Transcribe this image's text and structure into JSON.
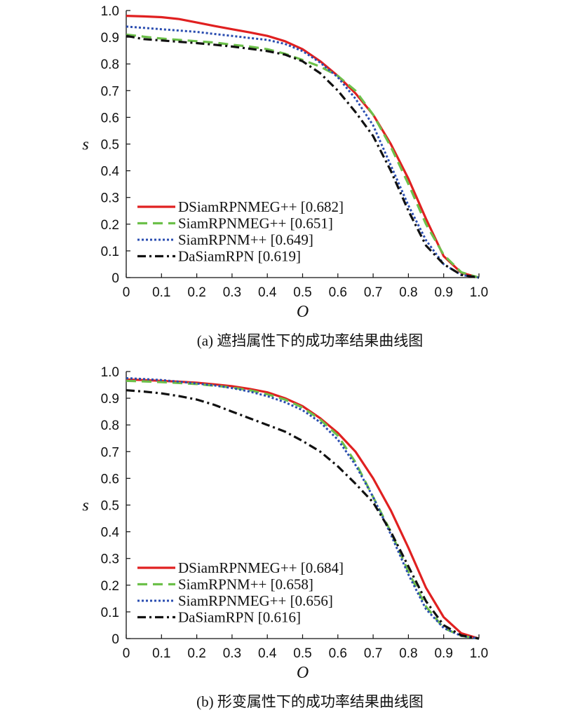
{
  "chart_data": [
    {
      "type": "line",
      "caption": "(a) 遮挡属性下的成功率结果曲线图",
      "xlabel": "O",
      "ylabel": "s",
      "xlim": [
        0,
        1.0
      ],
      "ylim": [
        0,
        1.0
      ],
      "xticks": [
        "0",
        "0.1",
        "0.2",
        "0.3",
        "0.4",
        "0.5",
        "0.6",
        "0.7",
        "0.8",
        "0.9",
        "1.0"
      ],
      "yticks": [
        "0",
        "0.1",
        "0.2",
        "0.3",
        "0.4",
        "0.5",
        "0.6",
        "0.7",
        "0.8",
        "0.9",
        "1.0"
      ],
      "grid": false,
      "legend_position": "bottom-left",
      "series": [
        {
          "name": "DSiamRPNMEG++ [0.682]",
          "color": "#e02020",
          "dash": "solid",
          "points": [
            [
              0,
              0.98
            ],
            [
              0.05,
              0.978
            ],
            [
              0.1,
              0.975
            ],
            [
              0.15,
              0.968
            ],
            [
              0.2,
              0.955
            ],
            [
              0.25,
              0.942
            ],
            [
              0.3,
              0.93
            ],
            [
              0.35,
              0.918
            ],
            [
              0.4,
              0.905
            ],
            [
              0.45,
              0.885
            ],
            [
              0.5,
              0.855
            ],
            [
              0.55,
              0.81
            ],
            [
              0.6,
              0.755
            ],
            [
              0.65,
              0.69
            ],
            [
              0.7,
              0.61
            ],
            [
              0.75,
              0.5
            ],
            [
              0.8,
              0.37
            ],
            [
              0.85,
              0.22
            ],
            [
              0.9,
              0.08
            ],
            [
              0.95,
              0.018
            ],
            [
              1.0,
              0
            ]
          ]
        },
        {
          "name": "SiamRPNMEG++ [0.651]",
          "color": "#6cc04a",
          "dash": "long-dash",
          "points": [
            [
              0,
              0.91
            ],
            [
              0.05,
              0.902
            ],
            [
              0.1,
              0.895
            ],
            [
              0.15,
              0.89
            ],
            [
              0.2,
              0.885
            ],
            [
              0.25,
              0.88
            ],
            [
              0.3,
              0.872
            ],
            [
              0.35,
              0.865
            ],
            [
              0.4,
              0.855
            ],
            [
              0.45,
              0.838
            ],
            [
              0.5,
              0.815
            ],
            [
              0.55,
              0.79
            ],
            [
              0.6,
              0.755
            ],
            [
              0.65,
              0.7
            ],
            [
              0.7,
              0.61
            ],
            [
              0.75,
              0.49
            ],
            [
              0.8,
              0.35
            ],
            [
              0.85,
              0.2
            ],
            [
              0.9,
              0.085
            ],
            [
              0.95,
              0.02
            ],
            [
              1.0,
              0
            ]
          ]
        },
        {
          "name": "SiamRPNM++ [0.649]",
          "color": "#2a4db0",
          "dash": "dot",
          "points": [
            [
              0,
              0.94
            ],
            [
              0.05,
              0.935
            ],
            [
              0.1,
              0.93
            ],
            [
              0.15,
              0.925
            ],
            [
              0.2,
              0.92
            ],
            [
              0.25,
              0.912
            ],
            [
              0.3,
              0.905
            ],
            [
              0.35,
              0.897
            ],
            [
              0.4,
              0.89
            ],
            [
              0.45,
              0.875
            ],
            [
              0.5,
              0.848
            ],
            [
              0.55,
              0.805
            ],
            [
              0.6,
              0.75
            ],
            [
              0.65,
              0.67
            ],
            [
              0.7,
              0.57
            ],
            [
              0.75,
              0.42
            ],
            [
              0.8,
              0.27
            ],
            [
              0.85,
              0.14
            ],
            [
              0.9,
              0.05
            ],
            [
              0.95,
              0.01
            ],
            [
              1.0,
              0
            ]
          ]
        },
        {
          "name": "DaSiamRPN [0.619]",
          "color": "#111111",
          "dash": "dash-dot",
          "points": [
            [
              0,
              0.905
            ],
            [
              0.05,
              0.893
            ],
            [
              0.1,
              0.888
            ],
            [
              0.15,
              0.883
            ],
            [
              0.2,
              0.878
            ],
            [
              0.25,
              0.872
            ],
            [
              0.3,
              0.865
            ],
            [
              0.35,
              0.857
            ],
            [
              0.4,
              0.848
            ],
            [
              0.45,
              0.835
            ],
            [
              0.5,
              0.81
            ],
            [
              0.55,
              0.765
            ],
            [
              0.6,
              0.7
            ],
            [
              0.65,
              0.62
            ],
            [
              0.7,
              0.53
            ],
            [
              0.75,
              0.4
            ],
            [
              0.8,
              0.25
            ],
            [
              0.85,
              0.12
            ],
            [
              0.9,
              0.05
            ],
            [
              0.95,
              0.01
            ],
            [
              1.0,
              0
            ]
          ]
        }
      ]
    },
    {
      "type": "line",
      "caption": "(b) 形变属性下的成功率结果曲线图",
      "xlabel": "O",
      "ylabel": "s",
      "xlim": [
        0,
        1.0
      ],
      "ylim": [
        0,
        1.0
      ],
      "xticks": [
        "0",
        "0.1",
        "0.2",
        "0.3",
        "0.4",
        "0.5",
        "0.6",
        "0.7",
        "0.8",
        "0.9",
        "1.0"
      ],
      "yticks": [
        "0",
        "0.1",
        "0.2",
        "0.3",
        "0.4",
        "0.5",
        "0.6",
        "0.7",
        "0.8",
        "0.9",
        "1.0"
      ],
      "grid": false,
      "legend_position": "bottom-left",
      "series": [
        {
          "name": "DSiamRPNMEG++ [0.684]",
          "color": "#e02020",
          "dash": "solid",
          "points": [
            [
              0,
              0.97
            ],
            [
              0.05,
              0.968
            ],
            [
              0.1,
              0.965
            ],
            [
              0.15,
              0.962
            ],
            [
              0.2,
              0.958
            ],
            [
              0.25,
              0.952
            ],
            [
              0.3,
              0.945
            ],
            [
              0.35,
              0.935
            ],
            [
              0.4,
              0.922
            ],
            [
              0.45,
              0.9
            ],
            [
              0.5,
              0.87
            ],
            [
              0.55,
              0.825
            ],
            [
              0.6,
              0.77
            ],
            [
              0.65,
              0.7
            ],
            [
              0.7,
              0.6
            ],
            [
              0.75,
              0.48
            ],
            [
              0.8,
              0.34
            ],
            [
              0.85,
              0.19
            ],
            [
              0.9,
              0.08
            ],
            [
              0.95,
              0.02
            ],
            [
              1.0,
              0
            ]
          ]
        },
        {
          "name": "SiamRPNM++ [0.658]",
          "color": "#6cc04a",
          "dash": "long-dash",
          "points": [
            [
              0,
              0.965
            ],
            [
              0.05,
              0.963
            ],
            [
              0.1,
              0.96
            ],
            [
              0.15,
              0.957
            ],
            [
              0.2,
              0.953
            ],
            [
              0.25,
              0.947
            ],
            [
              0.3,
              0.94
            ],
            [
              0.35,
              0.93
            ],
            [
              0.4,
              0.915
            ],
            [
              0.45,
              0.895
            ],
            [
              0.5,
              0.865
            ],
            [
              0.55,
              0.82
            ],
            [
              0.6,
              0.76
            ],
            [
              0.65,
              0.66
            ],
            [
              0.7,
              0.53
            ],
            [
              0.75,
              0.4
            ],
            [
              0.8,
              0.25
            ],
            [
              0.85,
              0.12
            ],
            [
              0.9,
              0.04
            ],
            [
              0.95,
              0.01
            ],
            [
              1.0,
              0
            ]
          ]
        },
        {
          "name": "SiamRPNMEG++ [0.656]",
          "color": "#2a4db0",
          "dash": "dot",
          "points": [
            [
              0,
              0.975
            ],
            [
              0.05,
              0.972
            ],
            [
              0.1,
              0.968
            ],
            [
              0.15,
              0.962
            ],
            [
              0.2,
              0.955
            ],
            [
              0.25,
              0.948
            ],
            [
              0.3,
              0.938
            ],
            [
              0.35,
              0.925
            ],
            [
              0.4,
              0.908
            ],
            [
              0.45,
              0.885
            ],
            [
              0.5,
              0.855
            ],
            [
              0.55,
              0.81
            ],
            [
              0.6,
              0.745
            ],
            [
              0.65,
              0.65
            ],
            [
              0.7,
              0.53
            ],
            [
              0.75,
              0.39
            ],
            [
              0.8,
              0.24
            ],
            [
              0.85,
              0.11
            ],
            [
              0.9,
              0.04
            ],
            [
              0.95,
              0.01
            ],
            [
              1.0,
              0
            ]
          ]
        },
        {
          "name": "DaSiamRPN [0.616]",
          "color": "#111111",
          "dash": "dash-dot",
          "points": [
            [
              0,
              0.93
            ],
            [
              0.05,
              0.925
            ],
            [
              0.1,
              0.918
            ],
            [
              0.15,
              0.908
            ],
            [
              0.2,
              0.895
            ],
            [
              0.25,
              0.875
            ],
            [
              0.3,
              0.85
            ],
            [
              0.35,
              0.825
            ],
            [
              0.4,
              0.8
            ],
            [
              0.45,
              0.775
            ],
            [
              0.5,
              0.74
            ],
            [
              0.55,
              0.7
            ],
            [
              0.6,
              0.645
            ],
            [
              0.65,
              0.58
            ],
            [
              0.7,
              0.51
            ],
            [
              0.75,
              0.4
            ],
            [
              0.8,
              0.27
            ],
            [
              0.85,
              0.14
            ],
            [
              0.9,
              0.05
            ],
            [
              0.95,
              0.012
            ],
            [
              1.0,
              0
            ]
          ]
        }
      ]
    }
  ]
}
